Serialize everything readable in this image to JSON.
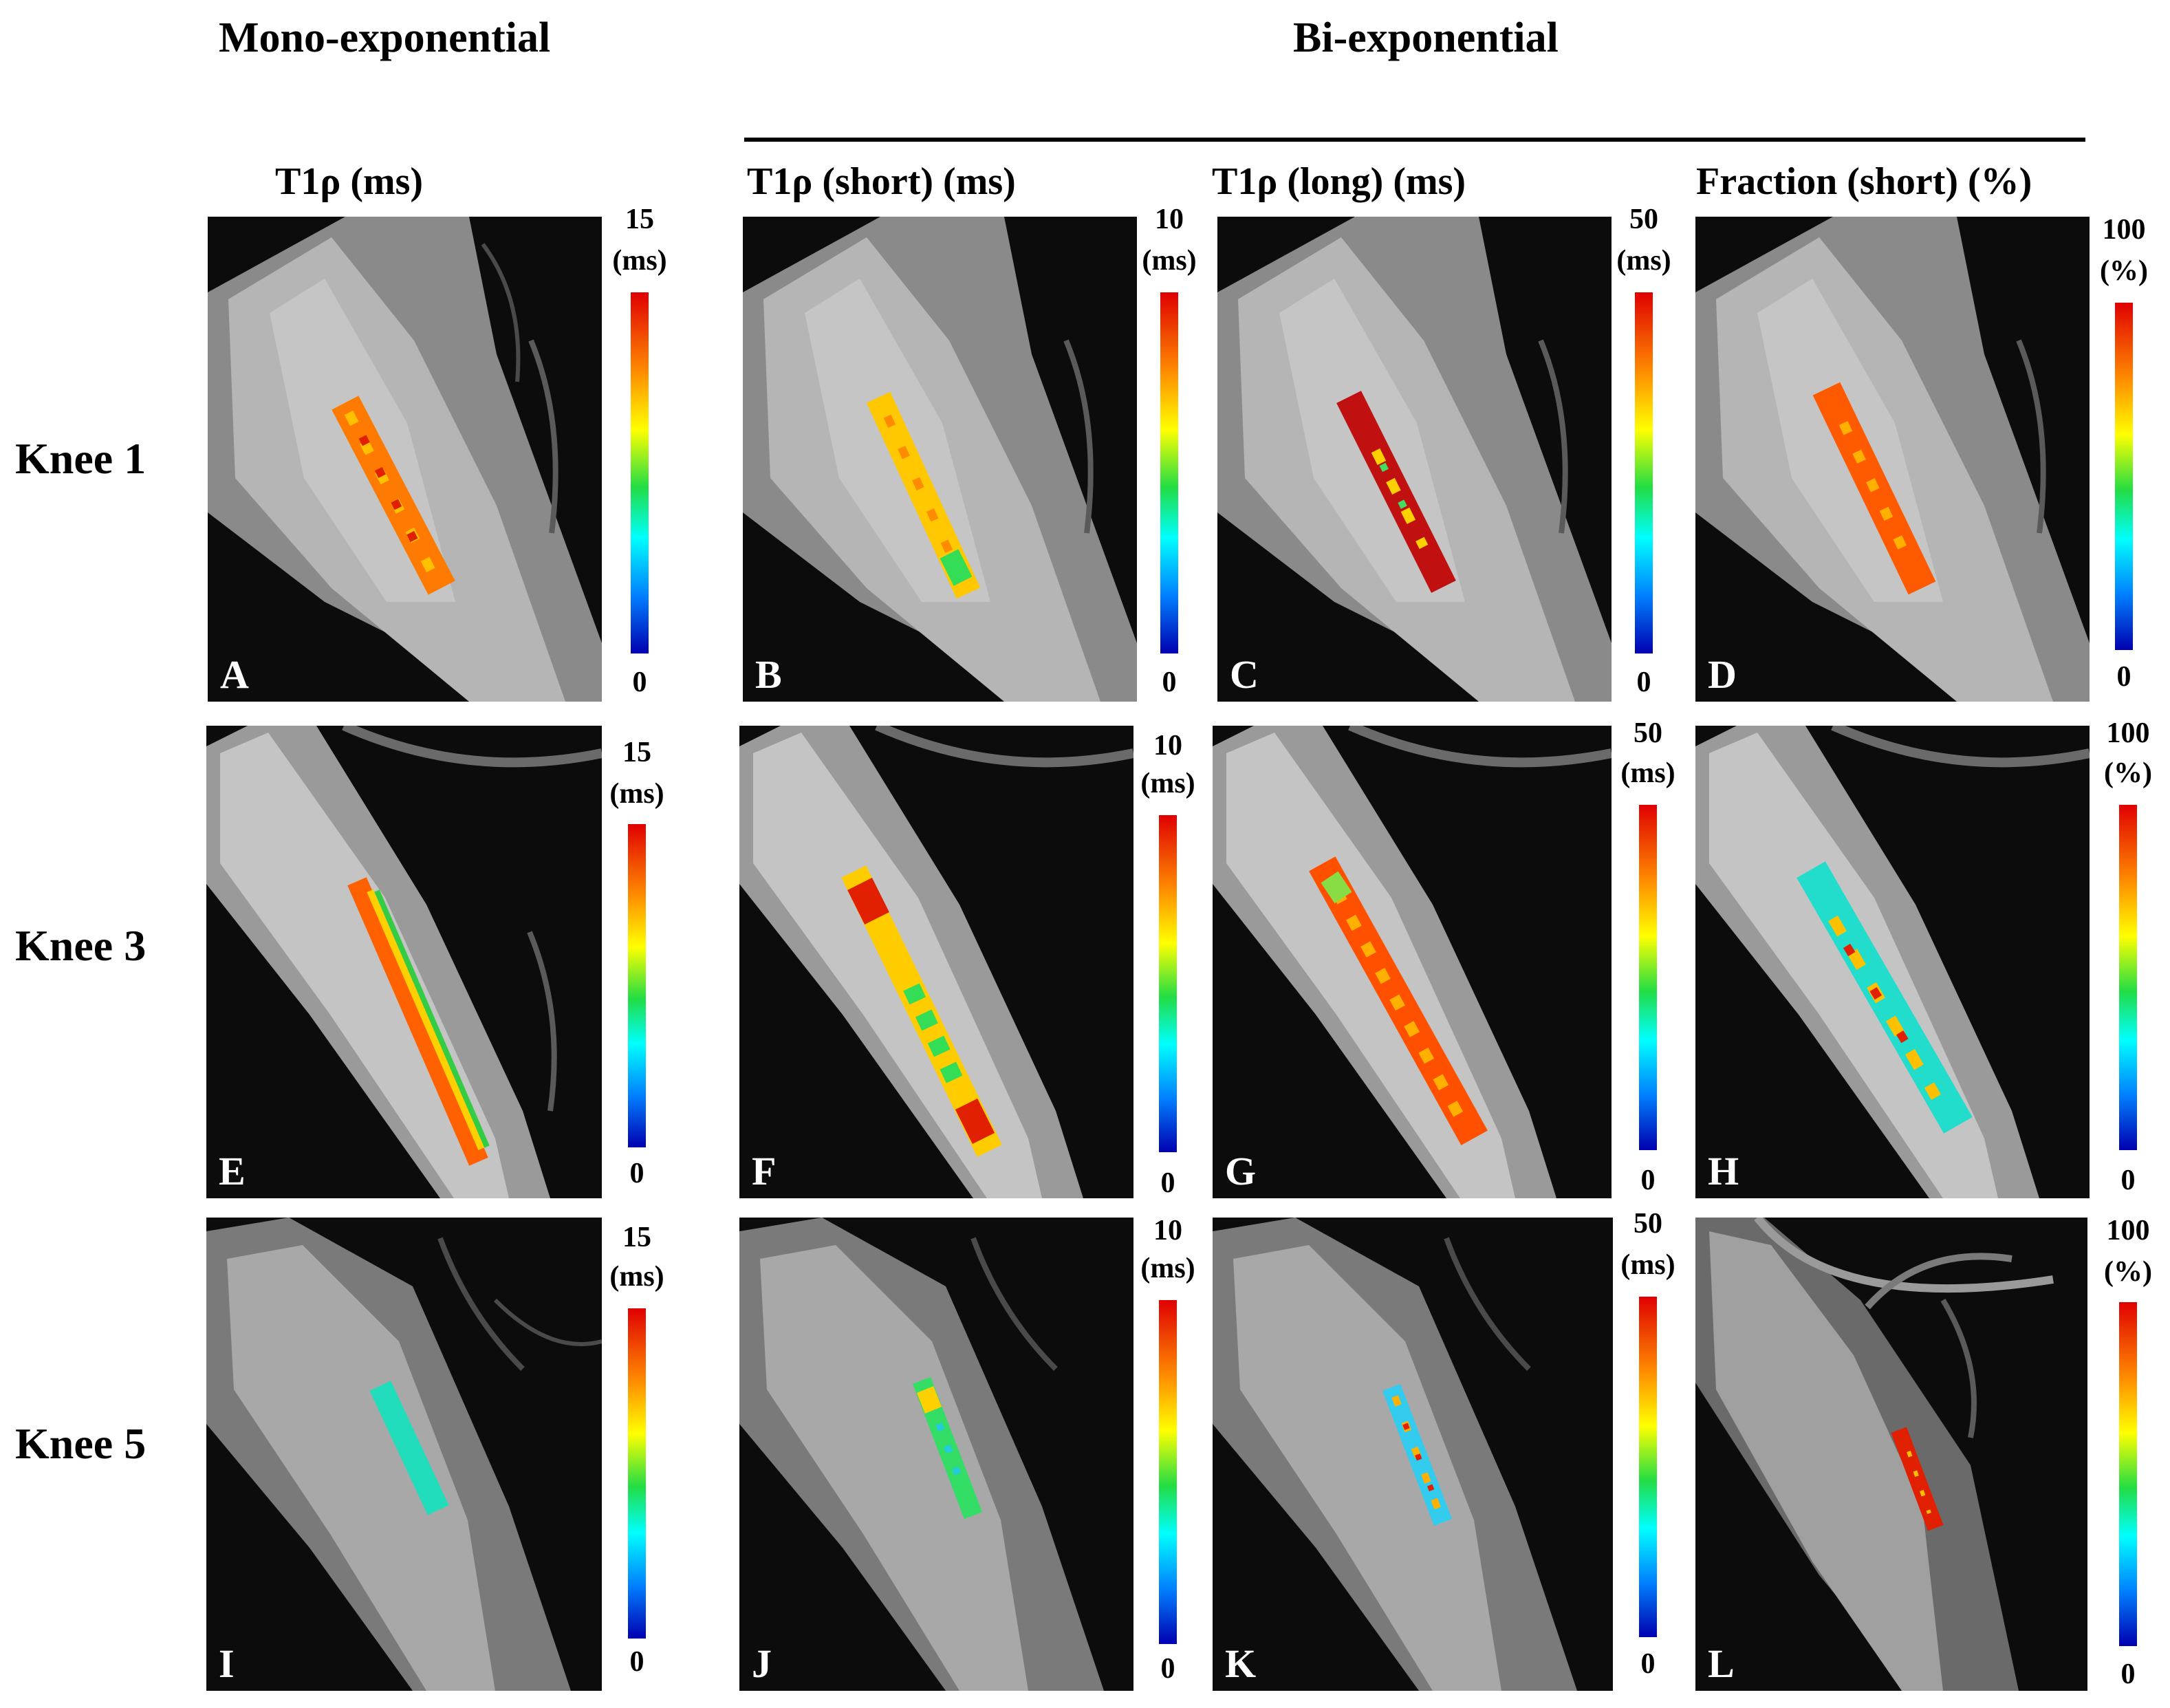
{
  "headers": {
    "mono": "Mono-exponential",
    "bi": "Bi-exponential"
  },
  "columns": [
    {
      "title": "T1ρ (ms)",
      "max": "15",
      "unit": "(ms)",
      "min": "0"
    },
    {
      "title": "T1ρ (short) (ms)",
      "max": "10",
      "unit": "(ms)",
      "min": "0"
    },
    {
      "title": "T1ρ (long) (ms)",
      "max": "50",
      "unit": "(ms)",
      "min": "0"
    },
    {
      "title": "Fraction (short) (%)",
      "max": "100",
      "unit": "(%)",
      "min": "0"
    }
  ],
  "rows": [
    {
      "label": "Knee 1",
      "panels": [
        "A",
        "B",
        "C",
        "D"
      ]
    },
    {
      "label": "Knee 3",
      "panels": [
        "E",
        "F",
        "G",
        "H"
      ]
    },
    {
      "label": "Knee 5",
      "panels": [
        "I",
        "J",
        "K",
        "L"
      ]
    }
  ],
  "colors": {
    "cmap_top": "#e00000",
    "cmap_mid": "#22dd44",
    "cmap_bottom": "#0000b0",
    "label_color": "#ffffff"
  }
}
